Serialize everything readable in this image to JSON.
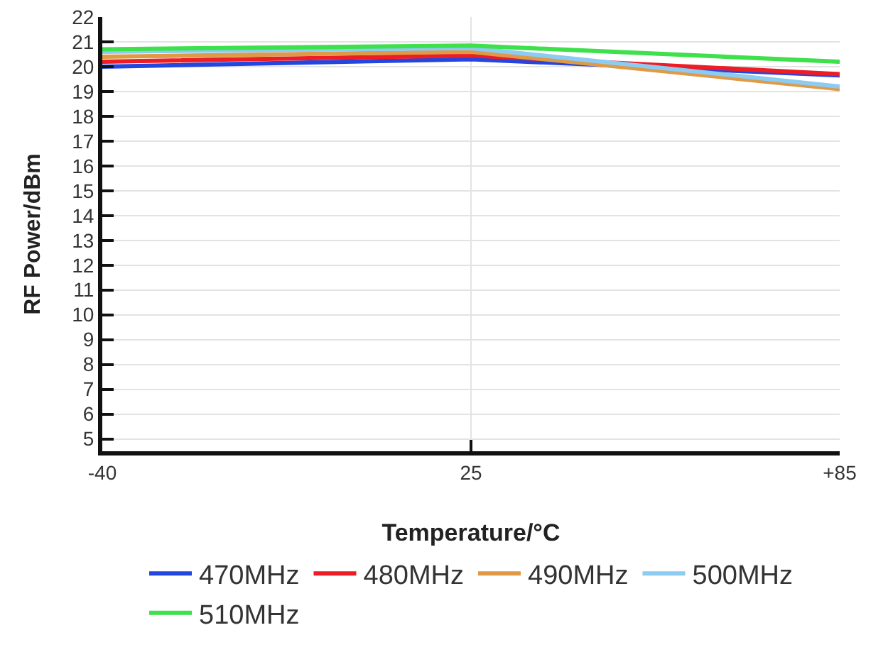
{
  "chart_data": {
    "type": "line",
    "xlabel": "Temperature/°C",
    "ylabel": "RF Power/dBm",
    "categories": [
      "-40",
      "25",
      "+85"
    ],
    "series": [
      {
        "name": "470MHz",
        "color": "#2346e0",
        "values": [
          20.0,
          20.3,
          19.65
        ]
      },
      {
        "name": "480MHz",
        "color": "#ee1c25",
        "values": [
          20.2,
          20.45,
          19.7
        ]
      },
      {
        "name": "490MHz",
        "color": "#e09a45",
        "values": [
          20.4,
          20.6,
          19.1
        ]
      },
      {
        "name": "500MHz",
        "color": "#8ccbf2",
        "values": [
          20.6,
          20.75,
          19.2
        ]
      },
      {
        "name": "510MHz",
        "color": "#3ee04c",
        "values": [
          20.7,
          20.85,
          20.2
        ]
      }
    ],
    "ylim": [
      4.5,
      22
    ],
    "yticks": [
      5,
      6,
      7,
      8,
      9,
      10,
      11,
      12,
      13,
      14,
      15,
      16,
      17,
      18,
      19,
      20,
      21,
      22
    ],
    "grid": true,
    "legend": "bottom",
    "marker": "none",
    "line_style": "solid"
  }
}
